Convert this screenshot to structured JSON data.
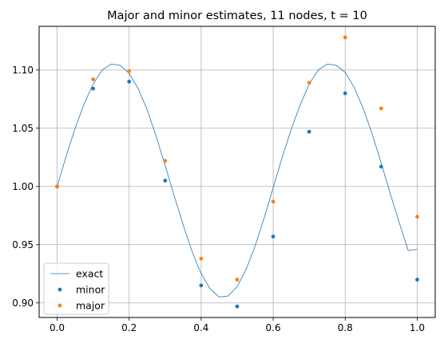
{
  "chart_data": {
    "type": "scatter",
    "title": "Major and minor estimates, 11 nodes, t = 10",
    "xlabel": "",
    "ylabel": "",
    "xlim": [
      -0.05,
      1.05
    ],
    "ylim": [
      0.8875,
      1.1375
    ],
    "x_ticks": [
      0.0,
      0.2,
      0.4,
      0.6,
      0.8,
      1.0
    ],
    "x_tick_labels": [
      "0.0",
      "0.2",
      "0.4",
      "0.6",
      "0.8",
      "1.0"
    ],
    "y_ticks": [
      0.9,
      0.95,
      1.0,
      1.05,
      1.1
    ],
    "y_tick_labels": [
      "0.90",
      "0.95",
      "1.00",
      "1.05",
      "1.10"
    ],
    "grid": true,
    "legend_position": "lower-left",
    "series": [
      {
        "name": "exact",
        "kind": "line",
        "color": "#1f77b4",
        "x": [
          0.0,
          0.025,
          0.05,
          0.075,
          0.1,
          0.125,
          0.15,
          0.175,
          0.2,
          0.225,
          0.25,
          0.275,
          0.3,
          0.325,
          0.35,
          0.375,
          0.4,
          0.425,
          0.45,
          0.475,
          0.5,
          0.525,
          0.55,
          0.575,
          0.6,
          0.625,
          0.65,
          0.675,
          0.7,
          0.725,
          0.75,
          0.775,
          0.8,
          0.825,
          0.85,
          0.875,
          0.9,
          0.925,
          0.95,
          0.975,
          1.0
        ],
        "y": [
          1.0,
          1.026,
          1.05,
          1.071,
          1.088,
          1.1,
          1.105,
          1.104,
          1.097,
          1.084,
          1.066,
          1.043,
          1.018,
          0.992,
          0.967,
          0.944,
          0.925,
          0.912,
          0.905,
          0.906,
          0.914,
          0.929,
          0.949,
          0.973,
          0.999,
          1.025,
          1.049,
          1.07,
          1.088,
          1.1,
          1.105,
          1.104,
          1.098,
          1.085,
          1.067,
          1.045,
          1.02,
          0.994,
          0.969,
          0.945,
          0.946
        ]
      },
      {
        "name": "minor",
        "kind": "scatter",
        "color": "#1f77b4",
        "x": [
          0.0,
          0.1,
          0.2,
          0.3,
          0.4,
          0.5,
          0.6,
          0.7,
          0.8,
          0.9,
          1.0
        ],
        "y": [
          1.0,
          1.084,
          1.09,
          1.005,
          0.915,
          0.897,
          0.957,
          1.047,
          1.08,
          1.017,
          0.92
        ]
      },
      {
        "name": "major",
        "kind": "scatter",
        "color": "#ff7f0e",
        "x": [
          0.0,
          0.1,
          0.2,
          0.3,
          0.4,
          0.5,
          0.6,
          0.7,
          0.8,
          0.9,
          1.0
        ],
        "y": [
          1.0,
          1.092,
          1.099,
          1.022,
          0.938,
          0.92,
          0.987,
          1.089,
          1.128,
          1.067,
          0.974
        ]
      }
    ]
  }
}
